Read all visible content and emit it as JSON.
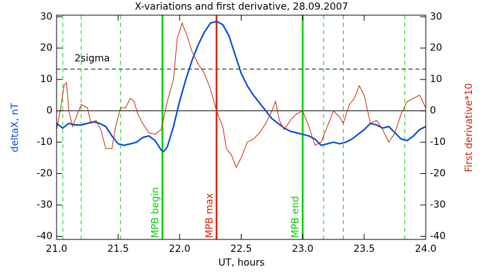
{
  "chart_data": {
    "type": "line",
    "title": "X-variations and first derivative, 28.09.2007",
    "xlabel": "UT, hours",
    "ylabel": "deltaX, nT",
    "y2label": "First derivative*10",
    "xlim": [
      21.0,
      24.0
    ],
    "ylim": [
      -41,
      30.5
    ],
    "y2lim": [
      -41,
      30.5
    ],
    "xticks": [
      {
        "value": 21.0,
        "label": "21.0"
      },
      {
        "value": 21.5,
        "label": "21.5"
      },
      {
        "value": 22.0,
        "label": "22.0"
      },
      {
        "value": 22.5,
        "label": "22.5"
      },
      {
        "value": 23.0,
        "label": "23.0"
      },
      {
        "value": 23.5,
        "label": "23.5"
      },
      {
        "value": 24.0,
        "label": "24.0"
      }
    ],
    "yticks": [
      30,
      20,
      10,
      0,
      -10,
      -20,
      -30,
      -40
    ],
    "y2ticks": [
      30,
      20,
      10,
      0,
      -10,
      -20,
      -30,
      -40
    ],
    "series": [
      {
        "name": "deltaX, nT",
        "color": "#0050d8",
        "width": 2.2,
        "x": [
          21.0,
          21.05,
          21.1,
          21.15,
          21.2,
          21.25,
          21.3,
          21.35,
          21.4,
          21.45,
          21.5,
          21.55,
          21.6,
          21.65,
          21.7,
          21.75,
          21.8,
          21.85,
          21.87,
          21.9,
          21.95,
          22.0,
          22.05,
          22.1,
          22.15,
          22.2,
          22.25,
          22.3,
          22.35,
          22.4,
          22.45,
          22.5,
          22.55,
          22.6,
          22.65,
          22.7,
          22.75,
          22.8,
          22.85,
          22.9,
          22.95,
          23.0,
          23.05,
          23.1,
          23.15,
          23.2,
          23.25,
          23.3,
          23.35,
          23.4,
          23.45,
          23.5,
          23.55,
          23.6,
          23.65,
          23.7,
          23.75,
          23.8,
          23.85,
          23.9,
          23.95,
          24.0
        ],
        "values": [
          -4,
          -5.5,
          -4,
          -4.5,
          -4.5,
          -4,
          -3.5,
          -4,
          -5,
          -8,
          -10.5,
          -11,
          -10.5,
          -10,
          -8.5,
          -8,
          -9.5,
          -12.5,
          -13,
          -11.5,
          -5,
          3,
          10,
          16,
          21,
          25,
          28,
          28.5,
          27.5,
          24,
          18,
          12,
          8,
          5,
          2.5,
          0,
          -2.5,
          -4,
          -5.5,
          -6.5,
          -7,
          -7.5,
          -8,
          -9,
          -11,
          -10.5,
          -10,
          -10.5,
          -10,
          -9,
          -7.5,
          -6,
          -4,
          -4.5,
          -5.5,
          -5,
          -7,
          -9,
          -9.5,
          -8,
          -6,
          -5
        ]
      },
      {
        "name": "First derivative*10",
        "color": "#d02000",
        "width": 1,
        "axis": "y2",
        "x": [
          21.0,
          21.03,
          21.06,
          21.08,
          21.1,
          21.13,
          21.16,
          21.2,
          21.25,
          21.28,
          21.32,
          21.36,
          21.4,
          21.45,
          21.48,
          21.52,
          21.56,
          21.6,
          21.63,
          21.66,
          21.7,
          21.75,
          21.8,
          21.85,
          21.9,
          21.95,
          21.98,
          22.02,
          22.06,
          22.1,
          22.15,
          22.2,
          22.25,
          22.3,
          22.35,
          22.38,
          22.42,
          22.46,
          22.5,
          22.55,
          22.6,
          22.65,
          22.7,
          22.75,
          22.78,
          22.81,
          22.85,
          22.9,
          22.95,
          23.0,
          23.05,
          23.1,
          23.15,
          23.2,
          23.25,
          23.3,
          23.33,
          23.38,
          23.42,
          23.46,
          23.5,
          23.55,
          23.6,
          23.65,
          23.7,
          23.75,
          23.8,
          23.85,
          23.9,
          23.95,
          24.0
        ],
        "values": [
          -6,
          0,
          8,
          9,
          0,
          -5,
          -2,
          2,
          1,
          -4,
          -3,
          -6,
          -12,
          -12,
          -5,
          1,
          1,
          4,
          3,
          -1,
          -4,
          -7,
          -7.5,
          -6,
          3,
          10,
          23,
          28,
          24,
          19,
          15,
          12,
          7,
          0,
          -5,
          -12,
          -14,
          -18,
          -15,
          -10,
          -9,
          -7,
          -4,
          0,
          3,
          -3,
          -6,
          -3,
          -1,
          0,
          -5,
          -11,
          -10,
          -5,
          0,
          -2,
          -4,
          2,
          4,
          8,
          5,
          -4,
          -3,
          -6,
          -10,
          -7,
          -1,
          3,
          4,
          5,
          1
        ]
      }
    ],
    "vlines": [
      {
        "x": 21.05,
        "color": "#00d000",
        "style": "dashed"
      },
      {
        "x": 21.2,
        "color": "#00d000",
        "style": "dashed"
      },
      {
        "x": 21.52,
        "color": "#00d000",
        "style": "dashed"
      },
      {
        "x": 21.86,
        "color": "#00d000",
        "style": "solid",
        "label": "MPB begin"
      },
      {
        "x": 22.3,
        "color": "#e02000",
        "style": "solid",
        "label": "MPB max"
      },
      {
        "x": 23.0,
        "color": "#00d000",
        "style": "solid",
        "label": "MPB end"
      },
      {
        "x": 23.17,
        "color": "#00d000",
        "style": "dashed"
      },
      {
        "x": 23.33,
        "color": "#00d000",
        "style": "dashed"
      },
      {
        "x": 23.83,
        "color": "#00d000",
        "style": "dashed"
      }
    ],
    "hlines": [
      {
        "value": 13.3,
        "style": "dashed",
        "label": "2sigma"
      },
      {
        "value": 0,
        "style": "solid"
      }
    ]
  }
}
